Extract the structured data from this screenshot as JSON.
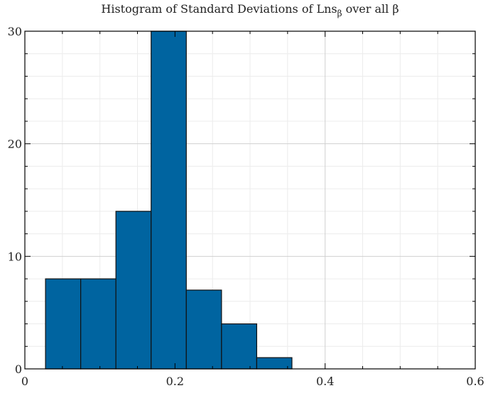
{
  "chart_data": {
    "type": "bar",
    "title": "Histogram of Standard Deviations of Lns",
    "title_subscript": "β",
    "title_suffix": " over all β",
    "xlabel": "",
    "ylabel": "",
    "xlim": [
      0,
      0.6
    ],
    "ylim": [
      0,
      30
    ],
    "x_ticks": [
      0,
      0.2,
      0.4,
      0.6
    ],
    "x_tick_labels": [
      "0",
      "0.2",
      "0.4",
      "0.6"
    ],
    "y_ticks": [
      0,
      10,
      20,
      30
    ],
    "y_tick_labels": [
      "0",
      "10",
      "20",
      "30"
    ],
    "bin_edges": [
      0.0275,
      0.0744,
      0.1213,
      0.1682,
      0.2151,
      0.262,
      0.3089,
      0.3558
    ],
    "counts": [
      8,
      8,
      14,
      30,
      7,
      4,
      1
    ],
    "bar_color": "#0064A0",
    "edge_color": "#111111",
    "grid": true,
    "minor_grid": true
  }
}
